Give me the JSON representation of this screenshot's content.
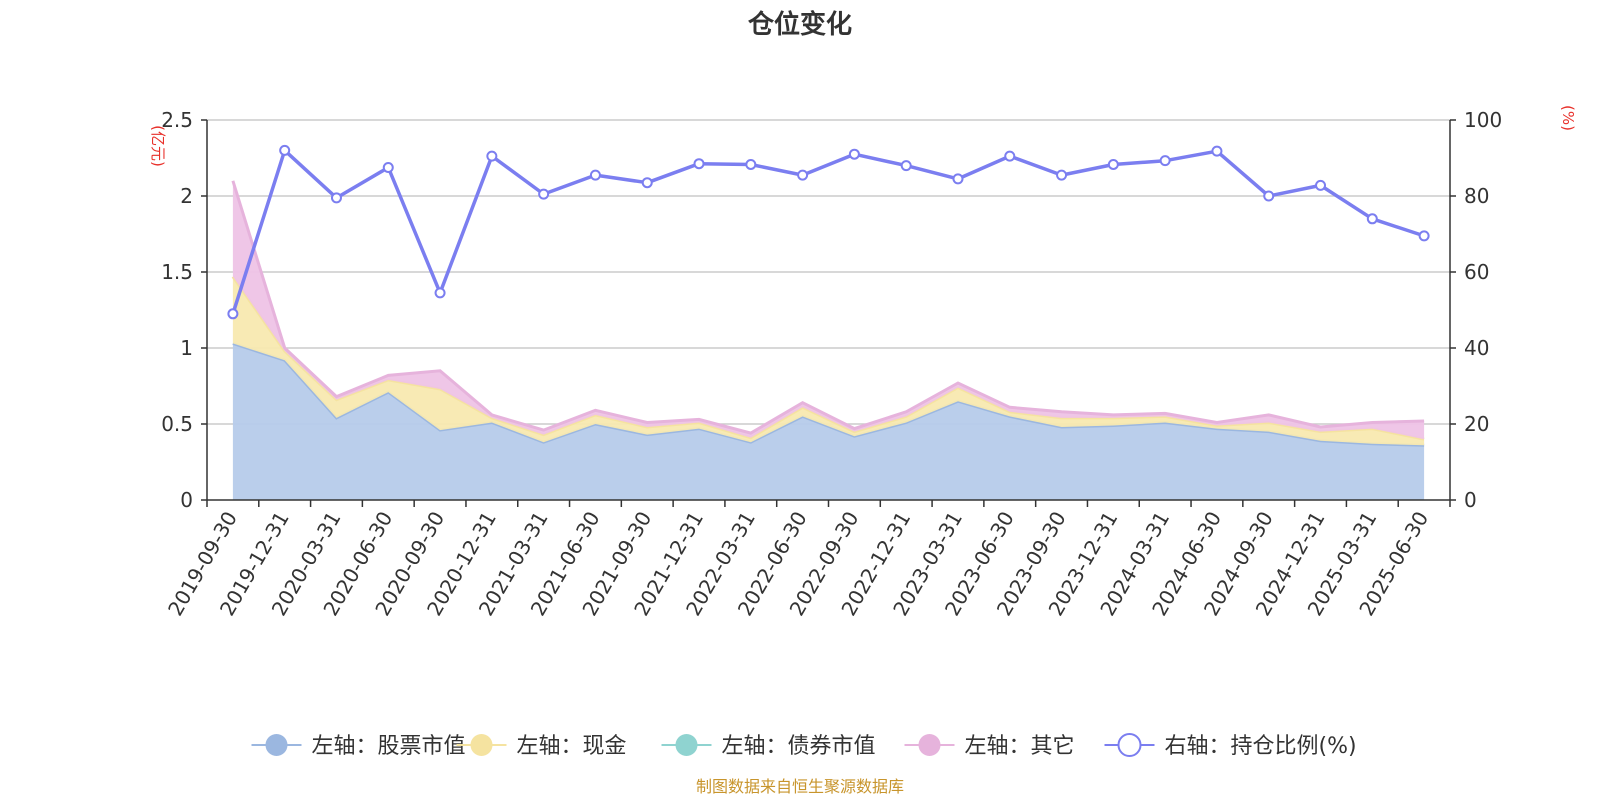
{
  "chart_data": {
    "type": "area",
    "title": "仓位变化",
    "categories": [
      "2019-09-30",
      "2019-12-31",
      "2020-03-31",
      "2020-06-30",
      "2020-09-30",
      "2020-12-31",
      "2021-03-31",
      "2021-06-30",
      "2021-09-30",
      "2021-12-31",
      "2022-03-31",
      "2022-06-30",
      "2022-09-30",
      "2022-12-31",
      "2023-03-31",
      "2023-06-30",
      "2023-09-30",
      "2023-12-31",
      "2024-03-31",
      "2024-06-30",
      "2024-09-30",
      "2024-12-31",
      "2025-03-31",
      "2025-06-30"
    ],
    "left_axis": {
      "unit": "(亿元)",
      "ylim": [
        0,
        2.5
      ],
      "ticks": [
        "0",
        "0.5",
        "1",
        "1.5",
        "2",
        "2.5"
      ]
    },
    "right_axis": {
      "unit": "(%)",
      "ylim": [
        0,
        100
      ],
      "ticks": [
        "0",
        "20",
        "40",
        "60",
        "80",
        "100"
      ]
    },
    "series": [
      {
        "name": "左轴：股票市值",
        "axis": "left",
        "kind": "stacked-area",
        "color": "#9bb7e0",
        "fill": "#b6cbea",
        "values": [
          1.03,
          0.92,
          0.54,
          0.71,
          0.46,
          0.51,
          0.38,
          0.5,
          0.43,
          0.47,
          0.38,
          0.55,
          0.42,
          0.51,
          0.65,
          0.55,
          0.48,
          0.49,
          0.51,
          0.47,
          0.45,
          0.39,
          0.37,
          0.36
        ]
      },
      {
        "name": "左轴：现金",
        "axis": "left",
        "kind": "stacked-area",
        "color": "#f5e3a0",
        "fill": "#f8e9b0",
        "values": [
          0.44,
          0.06,
          0.12,
          0.08,
          0.27,
          0.03,
          0.05,
          0.06,
          0.05,
          0.04,
          0.03,
          0.06,
          0.03,
          0.04,
          0.09,
          0.03,
          0.06,
          0.05,
          0.04,
          0.02,
          0.06,
          0.06,
          0.1,
          0.04
        ]
      },
      {
        "name": "左轴：债券市值",
        "axis": "left",
        "kind": "stacked-area",
        "color": "#8fd3d0",
        "fill": "#a6dcd9",
        "values": [
          0,
          0,
          0,
          0,
          0,
          0,
          0,
          0,
          0,
          0,
          0,
          0,
          0,
          0,
          0,
          0,
          0,
          0,
          0,
          0,
          0,
          0,
          0,
          0
        ]
      },
      {
        "name": "左轴：其它",
        "axis": "left",
        "kind": "stacked-area",
        "color": "#e6b3dc",
        "fill": "#eec3e6",
        "values": [
          0.63,
          0.02,
          0.02,
          0.03,
          0.12,
          0.02,
          0.03,
          0.03,
          0.03,
          0.02,
          0.03,
          0.03,
          0.02,
          0.03,
          0.03,
          0.03,
          0.04,
          0.02,
          0.02,
          0.02,
          0.05,
          0.03,
          0.04,
          0.12
        ]
      },
      {
        "name": "右轴：持仓比例(%)",
        "axis": "right",
        "kind": "line",
        "color": "#7b7ef0",
        "values": [
          49,
          92,
          79.5,
          87.5,
          54.5,
          90.5,
          80.5,
          85.5,
          83.5,
          88.5,
          88.3,
          85.5,
          91,
          88,
          84.5,
          90.5,
          85.5,
          88.3,
          89.3,
          91.8,
          80,
          82.8,
          74,
          69.5
        ]
      }
    ],
    "legend_position": "bottom",
    "grid": true
  },
  "source_note": "制图数据来自恒生聚源数据库"
}
